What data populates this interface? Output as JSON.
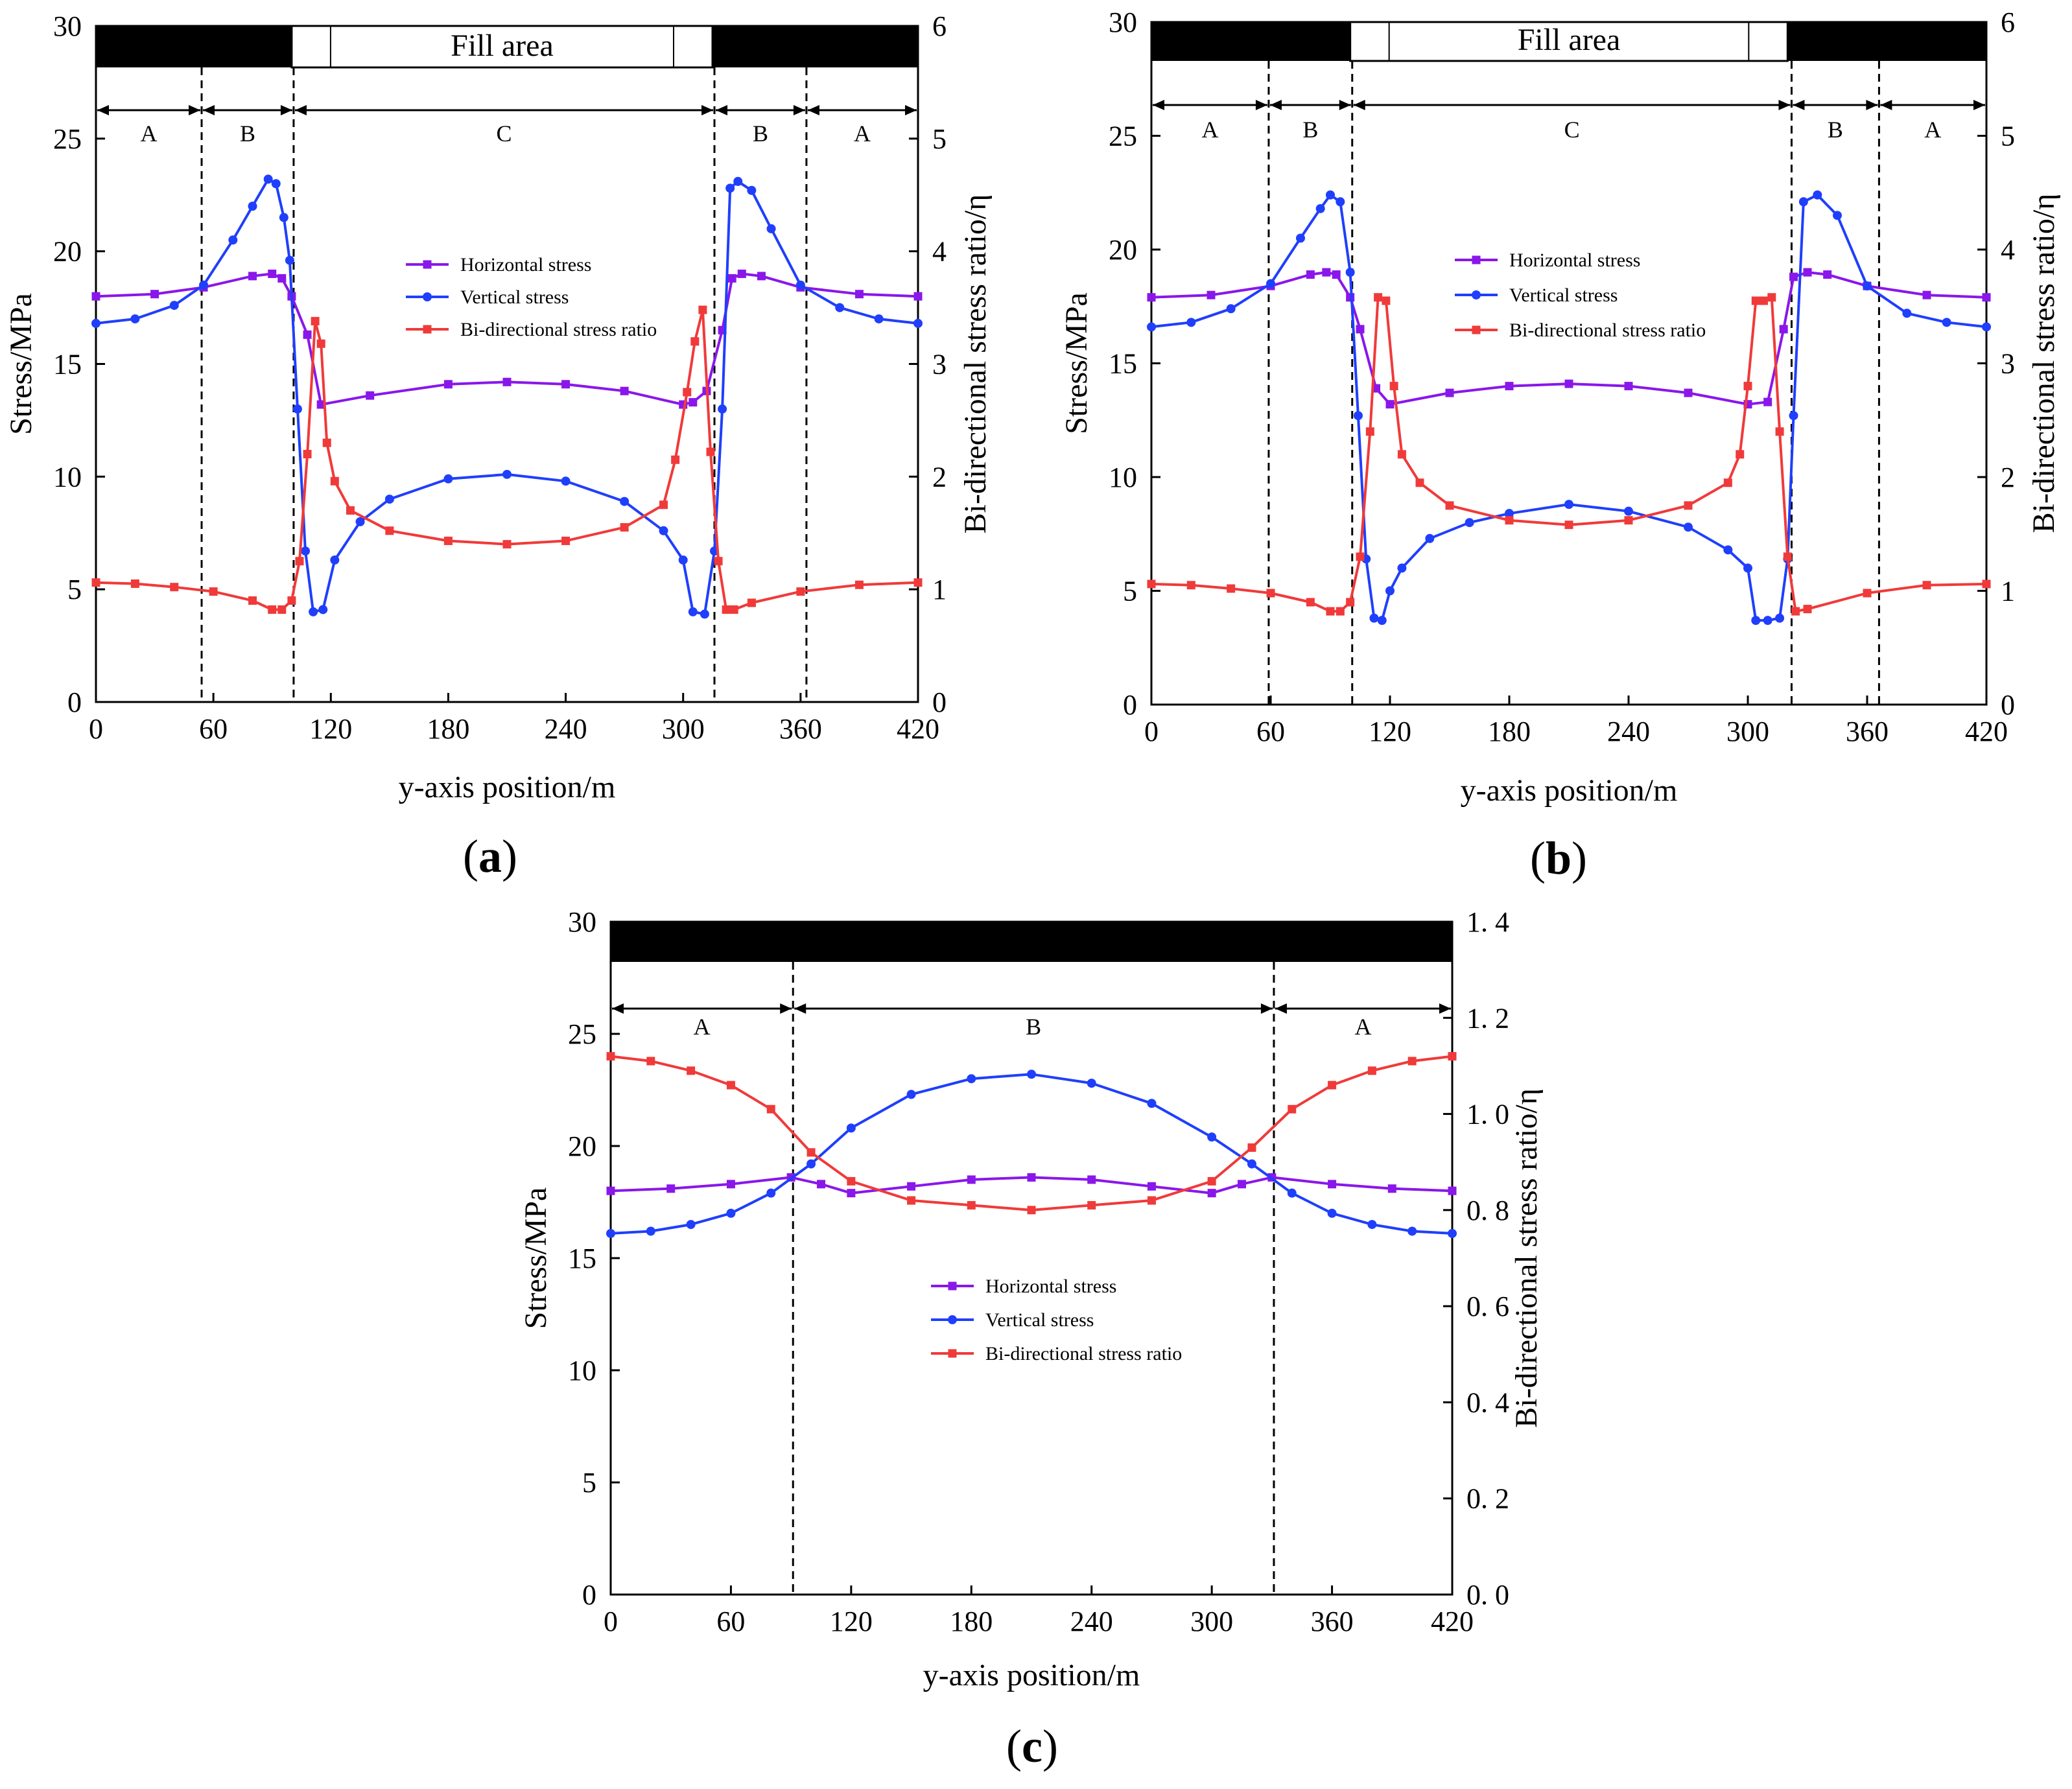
{
  "colors": {
    "horizontal": "#8a17ea",
    "vertical": "#1f3ffc",
    "ratio": "#f03a3a",
    "mine": "#000000"
  },
  "chart_data": [
    {
      "panel_label": "a",
      "type": "line",
      "xlabel": "y-axis position/m",
      "ylabel": "Stress/MPa",
      "y2label": "Bi-directional stress ratio/η",
      "xlim": [
        0,
        420
      ],
      "ylim": [
        0,
        30
      ],
      "y2lim": [
        0,
        6
      ],
      "xticks": [
        "0",
        "60",
        "120",
        "180",
        "240",
        "300",
        "360",
        "420"
      ],
      "yticks": [
        "0",
        "5",
        "10",
        "15",
        "20",
        "25",
        "30"
      ],
      "y2ticks": [
        "0",
        "1",
        "2",
        "3",
        "4",
        "5",
        "6"
      ],
      "fill_label": "Fill area",
      "fill_range": [
        100,
        315
      ],
      "zone_boundaries": [
        54,
        101,
        316,
        363
      ],
      "zone_labels": [
        "A",
        "B",
        "C",
        "B",
        "A"
      ],
      "series": [
        {
          "name": "Horizontal stress",
          "axis": "left",
          "marker": "square",
          "x": [
            0,
            30,
            55,
            80,
            90,
            95,
            100,
            108,
            115,
            140,
            180,
            210,
            240,
            270,
            300,
            305,
            312,
            320,
            325,
            330,
            340,
            360,
            390,
            420
          ],
          "y": [
            18.0,
            18.1,
            18.4,
            18.9,
            19.0,
            18.8,
            18.0,
            16.3,
            13.2,
            13.6,
            14.1,
            14.2,
            14.1,
            13.8,
            13.2,
            13.3,
            13.8,
            16.5,
            18.8,
            19.0,
            18.9,
            18.4,
            18.1,
            18.0
          ]
        },
        {
          "name": "Vertical stress",
          "axis": "left",
          "marker": "circle",
          "x": [
            0,
            20,
            40,
            55,
            70,
            80,
            88,
            92,
            96,
            99,
            103,
            107,
            111,
            116,
            122,
            135,
            150,
            180,
            210,
            240,
            270,
            290,
            300,
            305,
            311,
            316,
            320,
            324,
            328,
            335,
            345,
            360,
            380,
            400,
            420
          ],
          "y": [
            16.8,
            17.0,
            17.6,
            18.5,
            20.5,
            22.0,
            23.2,
            23.0,
            21.5,
            19.6,
            13.0,
            6.7,
            4.0,
            4.1,
            6.3,
            8.0,
            9.0,
            9.9,
            10.1,
            9.8,
            8.9,
            7.6,
            6.3,
            4.0,
            3.9,
            6.7,
            13.0,
            22.8,
            23.1,
            22.7,
            21.0,
            18.5,
            17.5,
            17.0,
            16.8
          ]
        },
        {
          "name": "Bi-directional stress ratio",
          "axis": "right",
          "marker": "square",
          "x": [
            0,
            20,
            40,
            60,
            80,
            90,
            95,
            100,
            104,
            108,
            112,
            115,
            118,
            122,
            130,
            150,
            180,
            210,
            240,
            270,
            290,
            296,
            302,
            306,
            310,
            314,
            318,
            322,
            326,
            335,
            360,
            390,
            420
          ],
          "y": [
            1.06,
            1.05,
            1.02,
            0.98,
            0.9,
            0.82,
            0.82,
            0.9,
            1.25,
            2.2,
            3.38,
            3.18,
            2.3,
            1.96,
            1.7,
            1.52,
            1.43,
            1.4,
            1.43,
            1.55,
            1.75,
            2.15,
            2.75,
            3.2,
            3.48,
            2.22,
            1.25,
            0.82,
            0.82,
            0.88,
            0.98,
            1.04,
            1.06
          ]
        }
      ]
    },
    {
      "panel_label": "b",
      "type": "line",
      "xlabel": "y-axis position/m",
      "ylabel": "Stress/MPa",
      "y2label": "Bi-directional stress ratio/η",
      "xlim": [
        0,
        420
      ],
      "ylim": [
        0,
        30
      ],
      "y2lim": [
        0,
        6
      ],
      "xticks": [
        "0",
        "60",
        "120",
        "180",
        "240",
        "300",
        "360",
        "420"
      ],
      "yticks": [
        "0",
        "5",
        "10",
        "15",
        "20",
        "25",
        "30"
      ],
      "y2ticks": [
        "0",
        "1",
        "2",
        "3",
        "4",
        "5",
        "6"
      ],
      "fill_label": "Fill area",
      "fill_range": [
        100,
        320
      ],
      "zone_boundaries": [
        59,
        101,
        322,
        366
      ],
      "zone_labels": [
        "A",
        "B",
        "C",
        "B",
        "A"
      ],
      "series": [
        {
          "name": "Horizontal stress",
          "axis": "left",
          "marker": "square",
          "x": [
            0,
            30,
            60,
            80,
            88,
            93,
            100,
            105,
            113,
            120,
            150,
            180,
            210,
            240,
            270,
            300,
            310,
            318,
            323,
            330,
            340,
            360,
            390,
            420
          ],
          "y": [
            17.9,
            18.0,
            18.4,
            18.9,
            19.0,
            18.9,
            17.9,
            16.5,
            13.9,
            13.2,
            13.7,
            14.0,
            14.1,
            14.0,
            13.7,
            13.2,
            13.3,
            16.5,
            18.8,
            19.0,
            18.9,
            18.4,
            18.0,
            17.9
          ]
        },
        {
          "name": "Vertical stress",
          "axis": "left",
          "marker": "circle",
          "x": [
            0,
            20,
            40,
            60,
            75,
            85,
            90,
            95,
            100,
            104,
            108,
            112,
            116,
            120,
            126,
            140,
            160,
            180,
            210,
            240,
            270,
            290,
            300,
            304,
            310,
            316,
            320,
            323,
            328,
            335,
            345,
            360,
            380,
            400,
            420
          ],
          "y": [
            16.6,
            16.8,
            17.4,
            18.5,
            20.5,
            21.8,
            22.4,
            22.1,
            19.0,
            12.7,
            6.4,
            3.8,
            3.7,
            5.0,
            6.0,
            7.3,
            8.0,
            8.4,
            8.8,
            8.5,
            7.8,
            6.8,
            6.0,
            3.7,
            3.7,
            3.8,
            6.4,
            12.7,
            22.1,
            22.4,
            21.5,
            18.4,
            17.2,
            16.8,
            16.6
          ]
        },
        {
          "name": "Bi-directional stress ratio",
          "axis": "right",
          "marker": "square",
          "x": [
            0,
            20,
            40,
            60,
            80,
            90,
            95,
            100,
            105,
            110,
            114,
            118,
            122,
            126,
            135,
            150,
            180,
            210,
            240,
            270,
            290,
            296,
            300,
            304,
            308,
            312,
            316,
            320,
            324,
            330,
            360,
            390,
            420
          ],
          "y": [
            1.06,
            1.05,
            1.02,
            0.98,
            0.9,
            0.82,
            0.82,
            0.9,
            1.3,
            2.4,
            3.58,
            3.55,
            2.8,
            2.2,
            1.95,
            1.75,
            1.62,
            1.58,
            1.62,
            1.75,
            1.95,
            2.2,
            2.8,
            3.55,
            3.55,
            3.58,
            2.4,
            1.3,
            0.82,
            0.84,
            0.98,
            1.05,
            1.06
          ]
        }
      ]
    },
    {
      "panel_label": "c",
      "type": "line",
      "xlabel": "y-axis position/m",
      "ylabel": "Stress/MPa",
      "y2label": "Bi-directional stress ratio/η",
      "xlim": [
        0,
        420
      ],
      "ylim": [
        0,
        30
      ],
      "y2lim": [
        0,
        1.4
      ],
      "xticks": [
        "0",
        "60",
        "120",
        "180",
        "240",
        "300",
        "360",
        "420"
      ],
      "yticks": [
        "0",
        "5",
        "10",
        "15",
        "20",
        "25",
        "30"
      ],
      "y2ticks": [
        "0. 0",
        "0. 2",
        "0. 4",
        "0. 6",
        "0. 8",
        "1. 0",
        "1. 2",
        "1. 4"
      ],
      "zone_boundaries": [
        91,
        331
      ],
      "zone_labels": [
        "A",
        "B",
        "A"
      ],
      "series": [
        {
          "name": "Horizontal stress",
          "axis": "left",
          "marker": "square",
          "x": [
            0,
            30,
            60,
            90,
            105,
            120,
            150,
            180,
            210,
            240,
            270,
            300,
            315,
            330,
            360,
            390,
            420
          ],
          "y": [
            18.0,
            18.1,
            18.3,
            18.6,
            18.3,
            17.9,
            18.2,
            18.5,
            18.6,
            18.5,
            18.2,
            17.9,
            18.3,
            18.6,
            18.3,
            18.1,
            18.0
          ]
        },
        {
          "name": "Vertical stress",
          "axis": "left",
          "marker": "circle",
          "x": [
            0,
            20,
            40,
            60,
            80,
            100,
            120,
            150,
            180,
            210,
            240,
            270,
            300,
            320,
            340,
            360,
            380,
            400,
            420
          ],
          "y": [
            16.1,
            16.2,
            16.5,
            17.0,
            17.9,
            19.2,
            20.8,
            22.3,
            23.0,
            23.2,
            22.8,
            21.9,
            20.4,
            19.2,
            17.9,
            17.0,
            16.5,
            16.2,
            16.1
          ]
        },
        {
          "name": "Bi-directional stress ratio",
          "axis": "right",
          "marker": "square",
          "x": [
            0,
            20,
            40,
            60,
            80,
            100,
            120,
            150,
            180,
            210,
            240,
            270,
            300,
            320,
            340,
            360,
            380,
            400,
            420
          ],
          "y": [
            1.12,
            1.11,
            1.09,
            1.06,
            1.01,
            0.92,
            0.86,
            0.82,
            0.81,
            0.8,
            0.81,
            0.82,
            0.86,
            0.93,
            1.01,
            1.06,
            1.09,
            1.11,
            1.12
          ]
        }
      ]
    }
  ]
}
